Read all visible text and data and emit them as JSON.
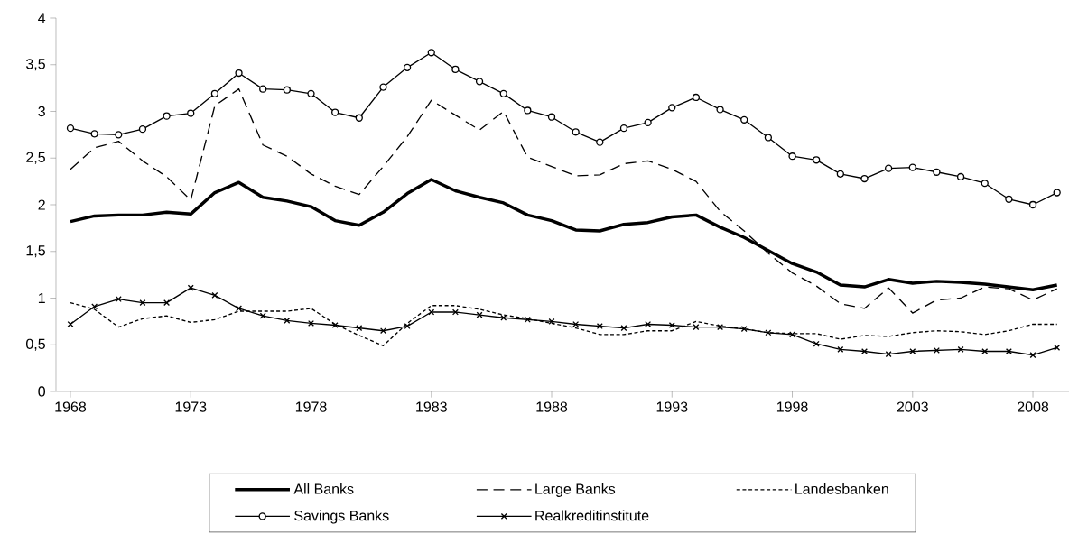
{
  "chart_data": {
    "type": "line",
    "x": [
      1968,
      1969,
      1970,
      1971,
      1972,
      1973,
      1974,
      1975,
      1976,
      1977,
      1978,
      1979,
      1980,
      1981,
      1982,
      1983,
      1984,
      1985,
      1986,
      1987,
      1988,
      1989,
      1990,
      1991,
      1992,
      1993,
      1994,
      1995,
      1996,
      1997,
      1998,
      1999,
      2000,
      2001,
      2002,
      2003,
      2004,
      2005,
      2006,
      2007,
      2008,
      2009
    ],
    "series": [
      {
        "name": "All Banks",
        "color": "#000000",
        "line_style": "solid",
        "marker": "none",
        "values": [
          1.82,
          1.88,
          1.89,
          1.89,
          1.92,
          1.9,
          2.13,
          2.24,
          2.08,
          2.04,
          1.98,
          1.83,
          1.78,
          1.92,
          2.12,
          2.27,
          2.15,
          2.08,
          2.02,
          1.89,
          1.83,
          1.73,
          1.72,
          1.79,
          1.81,
          1.87,
          1.89,
          1.76,
          1.65,
          1.51,
          1.37,
          1.28,
          1.14,
          1.12,
          1.2,
          1.16,
          1.18,
          1.17,
          1.15,
          1.12,
          1.09,
          1.14
        ]
      },
      {
        "name": "Large Banks",
        "color": "#000000",
        "line_style": "dashed",
        "marker": "none",
        "values": [
          2.38,
          2.61,
          2.68,
          2.47,
          2.3,
          2.05,
          3.06,
          3.24,
          2.64,
          2.52,
          2.33,
          2.2,
          2.11,
          2.41,
          2.73,
          3.12,
          2.96,
          2.8,
          3.0,
          2.51,
          2.41,
          2.31,
          2.32,
          2.44,
          2.47,
          2.38,
          2.25,
          1.93,
          1.72,
          1.48,
          1.27,
          1.13,
          0.94,
          0.89,
          1.11,
          0.84,
          0.98,
          1.0,
          1.12,
          1.1,
          0.98,
          1.1
        ]
      },
      {
        "name": "Landesbanken",
        "color": "#000000",
        "line_style": "dotted",
        "marker": "none",
        "values": [
          0.95,
          0.88,
          0.69,
          0.78,
          0.81,
          0.74,
          0.77,
          0.86,
          0.86,
          0.86,
          0.89,
          0.72,
          0.6,
          0.49,
          0.73,
          0.92,
          0.92,
          0.88,
          0.82,
          0.78,
          0.73,
          0.68,
          0.61,
          0.61,
          0.65,
          0.65,
          0.75,
          0.7,
          0.67,
          0.63,
          0.62,
          0.62,
          0.56,
          0.6,
          0.59,
          0.63,
          0.65,
          0.64,
          0.61,
          0.65,
          0.72,
          0.72
        ]
      },
      {
        "name": "Savings Banks",
        "color": "#000000",
        "line_style": "solid",
        "marker": "circle",
        "values": [
          2.82,
          2.76,
          2.75,
          2.81,
          2.95,
          2.98,
          3.19,
          3.41,
          3.24,
          3.23,
          3.19,
          2.99,
          2.93,
          3.26,
          3.47,
          3.63,
          3.45,
          3.32,
          3.19,
          3.01,
          2.94,
          2.78,
          2.67,
          2.82,
          2.88,
          3.04,
          3.15,
          3.02,
          2.91,
          2.72,
          2.52,
          2.48,
          2.33,
          2.28,
          2.39,
          2.4,
          2.35,
          2.3,
          2.23,
          2.06,
          2.0,
          2.13
        ]
      },
      {
        "name": "Realkreditinstitute",
        "color": "#000000",
        "line_style": "solid",
        "marker": "cross",
        "values": [
          0.72,
          0.91,
          0.99,
          0.95,
          0.95,
          1.11,
          1.03,
          0.89,
          0.81,
          0.76,
          0.73,
          0.71,
          0.68,
          0.65,
          0.7,
          0.85,
          0.85,
          0.82,
          0.79,
          0.77,
          0.75,
          0.72,
          0.7,
          0.68,
          0.72,
          0.71,
          0.69,
          0.69,
          0.67,
          0.63,
          0.61,
          0.51,
          0.45,
          0.43,
          0.4,
          0.43,
          0.44,
          0.45,
          0.43,
          0.43,
          0.39,
          0.47
        ]
      }
    ],
    "xlim": [
      1967.4,
      2009.5
    ],
    "xticks": [
      1968,
      1973,
      1978,
      1983,
      1988,
      1993,
      1998,
      2003,
      2008
    ],
    "ylim": [
      0,
      4
    ],
    "yticks": [
      0,
      {
        "value": 0.5,
        "label": "0,5"
      },
      1,
      {
        "value": 1.5,
        "label": "1,5"
      },
      2,
      {
        "value": 2.5,
        "label": "2,5"
      },
      3,
      {
        "value": 3.5,
        "label": "3,5"
      },
      4
    ],
    "grid": false,
    "legend": "bottom"
  }
}
